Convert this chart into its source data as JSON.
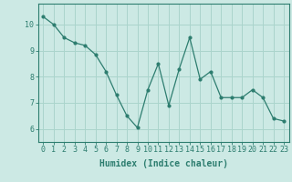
{
  "x": [
    0,
    1,
    2,
    3,
    4,
    5,
    6,
    7,
    8,
    9,
    10,
    11,
    12,
    13,
    14,
    15,
    16,
    17,
    18,
    19,
    20,
    21,
    22,
    23
  ],
  "y": [
    10.3,
    10.0,
    9.5,
    9.3,
    9.2,
    8.85,
    8.2,
    7.3,
    6.5,
    6.05,
    7.5,
    8.5,
    6.9,
    8.3,
    9.5,
    7.9,
    8.2,
    7.2,
    7.2,
    7.2,
    7.5,
    7.2,
    6.4,
    6.3
  ],
  "line_color": "#2d7d6f",
  "marker": "o",
  "marker_size": 2,
  "bg_color": "#cce9e4",
  "grid_color": "#aad4cc",
  "axis_color": "#2d7d6f",
  "xlabel": "Humidex (Indice chaleur)",
  "xlabel_fontsize": 7,
  "tick_fontsize": 6,
  "xlim": [
    -0.5,
    23.5
  ],
  "ylim": [
    5.5,
    10.8
  ],
  "yticks": [
    6,
    7,
    8,
    9,
    10
  ],
  "xticks": [
    0,
    1,
    2,
    3,
    4,
    5,
    6,
    7,
    8,
    9,
    10,
    11,
    12,
    13,
    14,
    15,
    16,
    17,
    18,
    19,
    20,
    21,
    22,
    23
  ]
}
